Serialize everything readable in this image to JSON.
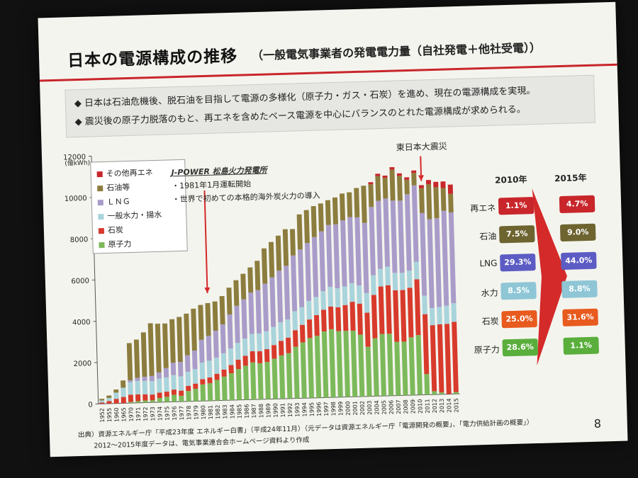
{
  "slide": {
    "title": "日本の電源構成の推移",
    "subtitle": "（一般電気事業者の発電電力量（自社発電＋他社受電））",
    "bullets": [
      "◆ 日本は石油危機後、脱石油を目指して電源の多様化（原子力・ガス・石炭）を進め、現在の電源構成を実現。",
      "◆ 震災後の原子力脱落のもと、再エネを含めたベース電源を中心にバランスのとれた電源構成が求められる。"
    ],
    "source": "出典）資源エネルギー庁「平成23年度 エネルギー白書」（平成24年11月）（元データは資源エネルギー庁「電源開発の概要」、「電力供給計画の概要」）",
    "source2": "2012～2015年度データは、電気事業連合会ホームページ資料より作成",
    "page": "8"
  },
  "mix": {
    "year_a": "2010年",
    "year_b": "2015年",
    "rows": [
      {
        "label": "再エネ",
        "v2010": "1.1%",
        "v2015": "4.7%",
        "color": "#c8262b"
      },
      {
        "label": "石油",
        "v2010": "7.5%",
        "v2015": "9.0%",
        "color": "#6d6430"
      },
      {
        "label": "LNG",
        "v2010": "29.3%",
        "v2015": "44.0%",
        "color": "#5c5cc4"
      },
      {
        "label": "水力",
        "v2010": "8.5%",
        "v2015": "8.8%",
        "color": "#8ec6d6"
      },
      {
        "label": "石炭",
        "v2010": "25.0%",
        "v2015": "31.6%",
        "color": "#e85a1e"
      },
      {
        "label": "原子力",
        "v2010": "28.6%",
        "v2015": "1.1%",
        "color": "#5aae3c"
      }
    ]
  },
  "chart_data": {
    "type": "bar",
    "stacked": true,
    "ylabel": "(億kWh)",
    "ylim": [
      0,
      12000
    ],
    "yticks": [
      0,
      2000,
      4000,
      6000,
      8000,
      10000,
      12000
    ],
    "legend_position": "top-left",
    "categories": [
      "1952",
      "1955",
      "1960",
      "1965",
      "1970",
      "1971",
      "1972",
      "1973",
      "1974",
      "1975",
      "1976",
      "1977",
      "1978",
      "1979",
      "1980",
      "1981",
      "1982",
      "1983",
      "1984",
      "1985",
      "1986",
      "1987",
      "1988",
      "1989",
      "1990",
      "1991",
      "1992",
      "1993",
      "1994",
      "1995",
      "1996",
      "1997",
      "1998",
      "1999",
      "2000",
      "2001",
      "2002",
      "2003",
      "2004",
      "2005",
      "2006",
      "2007",
      "2008",
      "2009",
      "2010",
      "2011",
      "2012",
      "2013",
      "2014",
      "2015"
    ],
    "series": [
      {
        "name": "原子力",
        "color": "#7cb95a",
        "values": [
          0,
          0,
          0,
          0,
          50,
          80,
          100,
          100,
          200,
          250,
          340,
          280,
          500,
          600,
          800,
          850,
          1000,
          1150,
          1300,
          1500,
          1650,
          1800,
          1750,
          1800,
          1950,
          2100,
          2200,
          2500,
          2700,
          2900,
          3000,
          3200,
          3300,
          3200,
          3200,
          3200,
          3000,
          2400,
          2800,
          3000,
          3000,
          2600,
          2600,
          2800,
          2900,
          1000,
          160,
          90,
          0,
          90
        ]
      },
      {
        "name": "石炭",
        "color": "#d83a2b",
        "values": [
          60,
          120,
          220,
          300,
          350,
          330,
          300,
          280,
          260,
          250,
          250,
          250,
          250,
          250,
          260,
          280,
          300,
          340,
          400,
          450,
          480,
          540,
          580,
          620,
          660,
          700,
          750,
          800,
          850,
          900,
          1000,
          1050,
          1100,
          1150,
          1250,
          1400,
          1500,
          1650,
          2100,
          2300,
          2350,
          2500,
          2500,
          2400,
          2700,
          2900,
          3200,
          3300,
          3400,
          3400
        ]
      },
      {
        "name": "一般水力・揚水",
        "color": "#a9d4dc",
        "values": [
          100,
          150,
          300,
          450,
          600,
          650,
          650,
          650,
          680,
          690,
          700,
          690,
          680,
          700,
          800,
          810,
          780,
          790,
          800,
          810,
          830,
          840,
          860,
          870,
          880,
          900,
          880,
          920,
          850,
          900,
          880,
          900,
          950,
          920,
          900,
          900,
          880,
          950,
          960,
          850,
          900,
          840,
          830,
          830,
          850,
          900,
          830,
          840,
          880,
          900
        ]
      },
      {
        "name": "ＬＮＧ",
        "color": "#a99cc9",
        "values": [
          0,
          0,
          0,
          0,
          100,
          150,
          200,
          250,
          300,
          450,
          600,
          700,
          800,
          900,
          1100,
          1200,
          1300,
          1400,
          1650,
          1800,
          1900,
          2000,
          2100,
          2300,
          2400,
          2500,
          2600,
          2700,
          2800,
          2800,
          2900,
          2900,
          3000,
          3100,
          3200,
          3200,
          3300,
          3400,
          3300,
          3300,
          3300,
          3500,
          3500,
          3700,
          3700,
          4000,
          4300,
          4300,
          4600,
          4400
        ]
      },
      {
        "name": "石油等",
        "color": "#8c7d3e",
        "values": [
          80,
          120,
          150,
          350,
          1800,
          1850,
          2150,
          2550,
          2360,
          2160,
          2110,
          2180,
          2020,
          2030,
          1690,
          1590,
          1420,
          1370,
          1300,
          1240,
          1240,
          1220,
          1420,
          1710,
          1710,
          1700,
          1770,
          1280,
          1700,
          1600,
          1500,
          1350,
          1200,
          1300,
          1300,
          1200,
          1420,
          1800,
          1100,
          1200,
          1000,
          1500,
          1200,
          700,
          600,
          1200,
          1700,
          1500,
          1100,
          900
        ]
      },
      {
        "name": "その他再エネ",
        "color": "#c8262b",
        "values": [
          0,
          0,
          0,
          0,
          0,
          0,
          0,
          0,
          0,
          0,
          0,
          0,
          0,
          0,
          0,
          0,
          0,
          0,
          0,
          0,
          0,
          0,
          0,
          0,
          0,
          0,
          0,
          0,
          0,
          0,
          0,
          0,
          0,
          0,
          0,
          0,
          0,
          0,
          100,
          110,
          110,
          120,
          120,
          120,
          120,
          150,
          200,
          260,
          320,
          450
        ]
      }
    ],
    "annotations": [
      {
        "heading": "J-POWER 松島火力発電所",
        "lines": [
          "・1981年1月運転開始",
          "・世界で初めての本格的海外炭火力の導入"
        ],
        "at": "1981"
      },
      {
        "label": "東日本大震災",
        "at": "2011"
      }
    ]
  }
}
